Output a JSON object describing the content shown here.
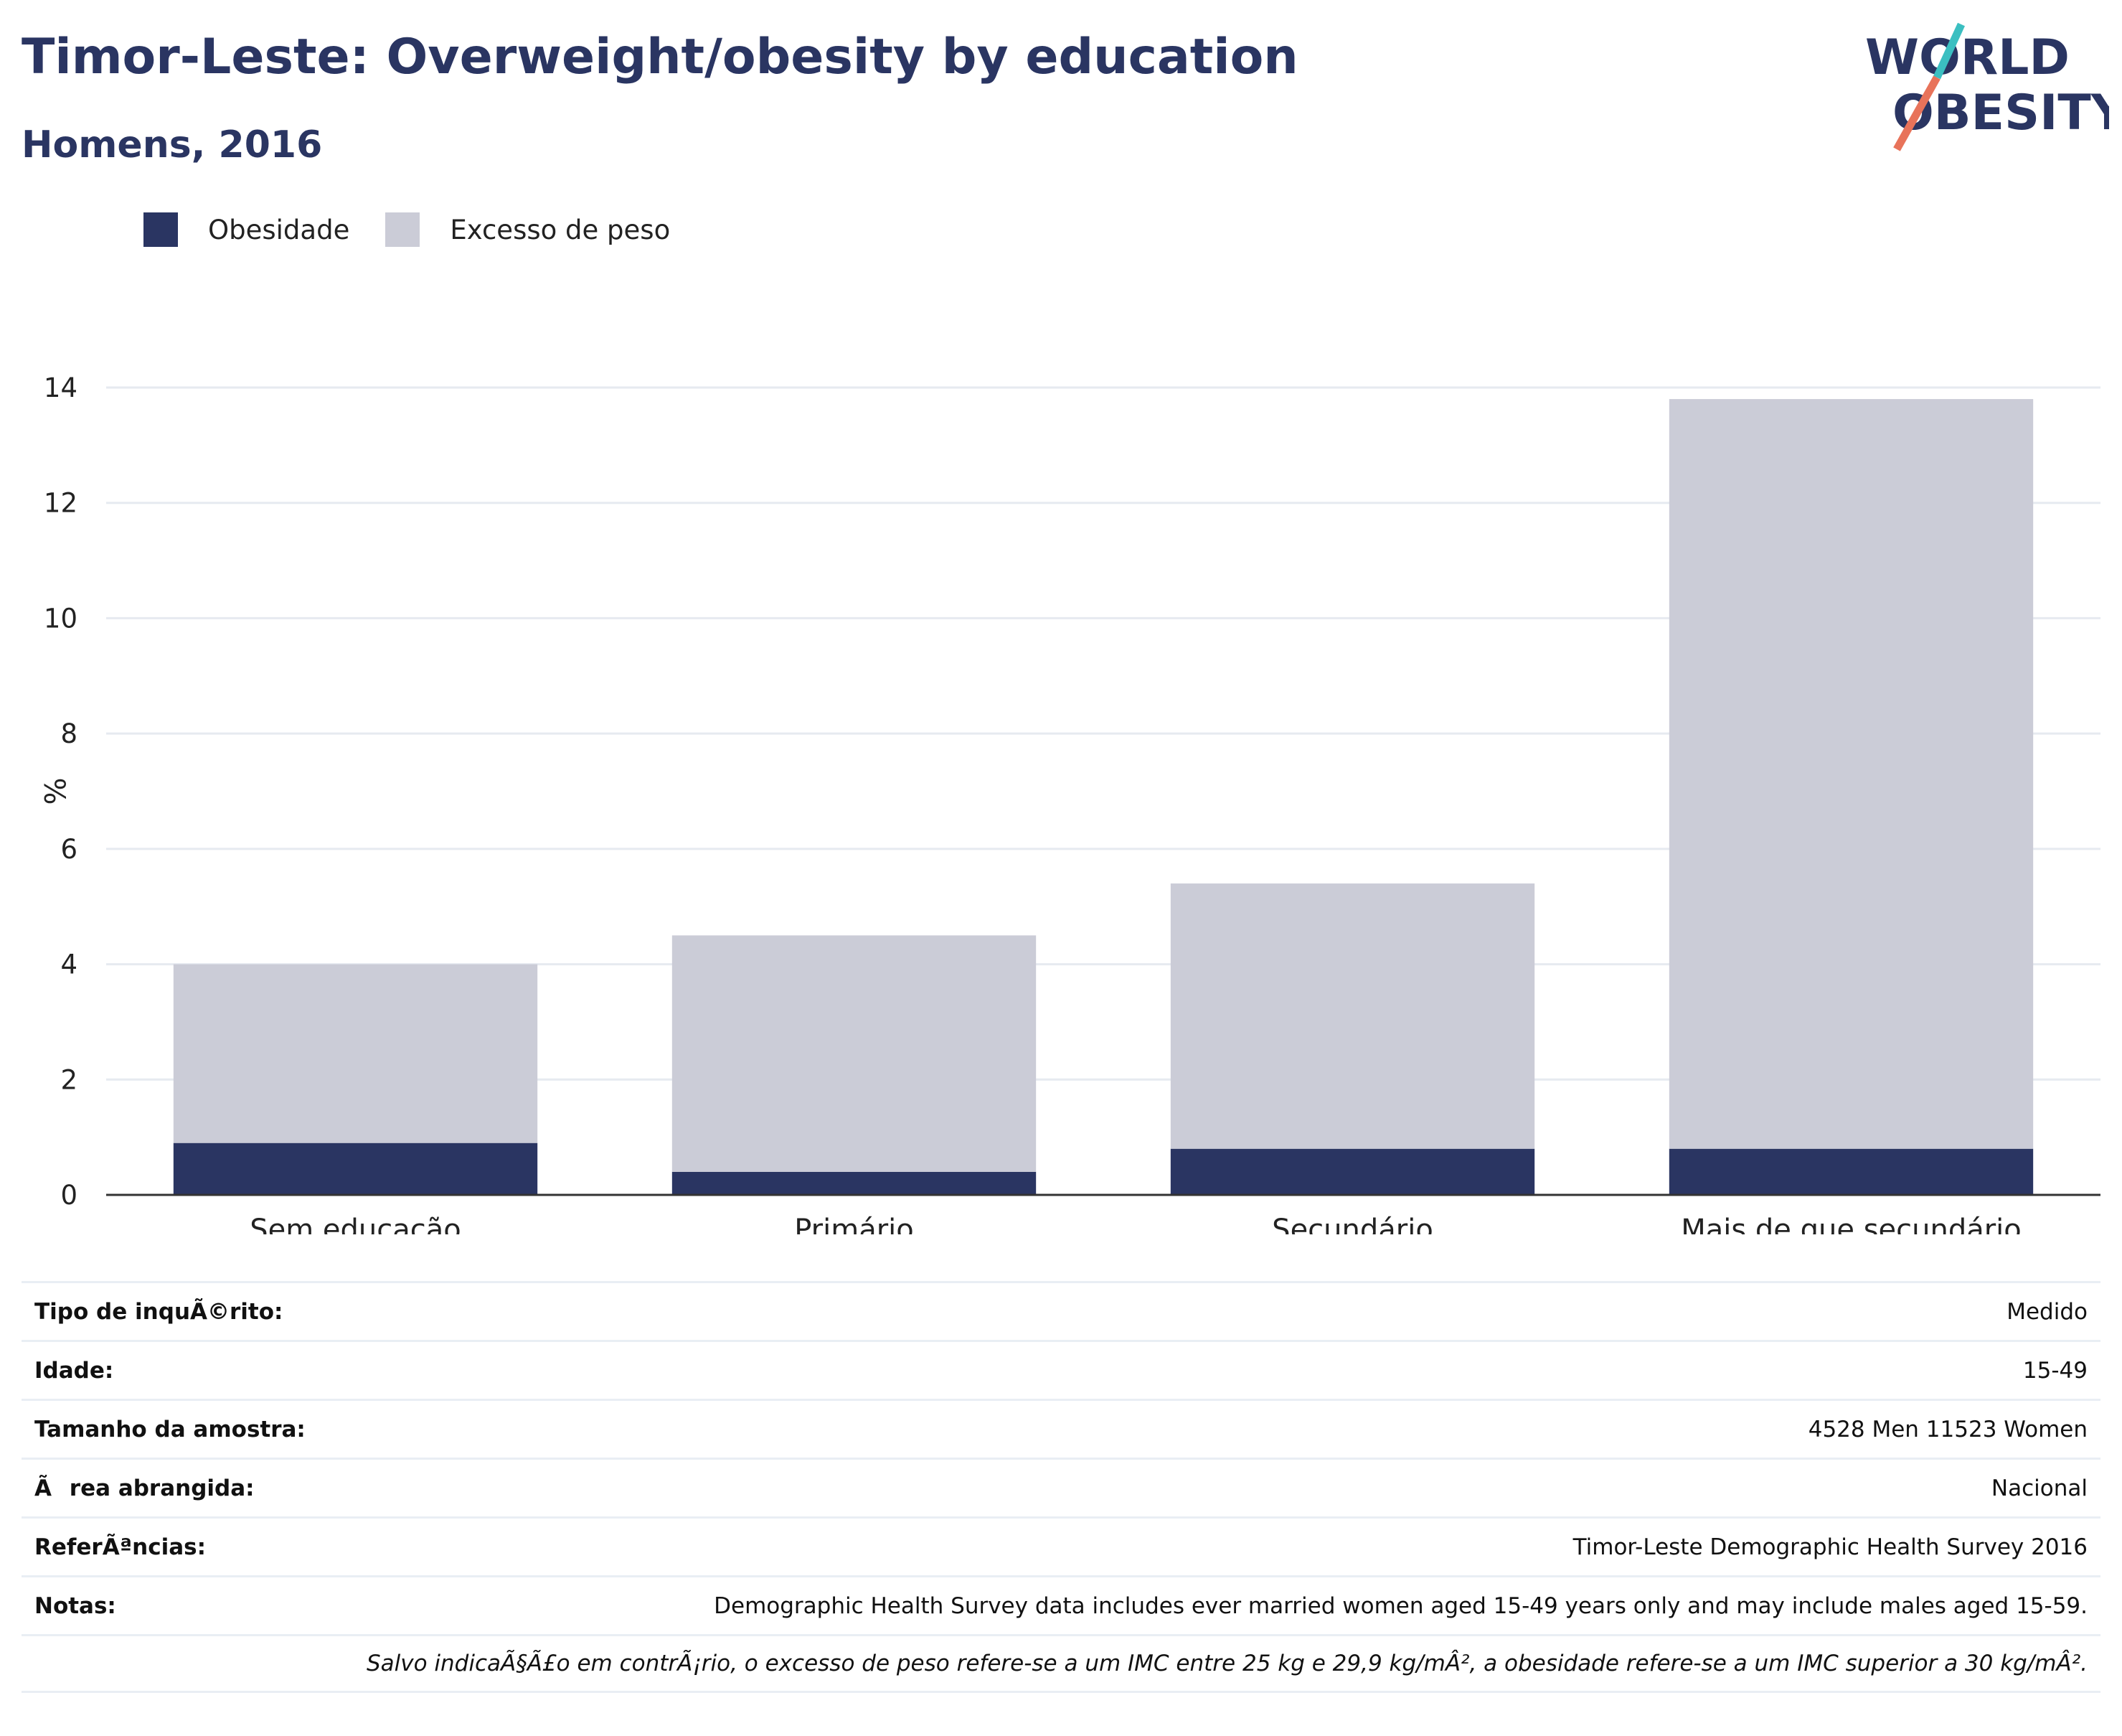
{
  "header": {
    "title": "Timor-Leste: Overweight/obesity by education",
    "subtitle": "Homens, 2016"
  },
  "logo": {
    "line1": "WORLD",
    "line2": "OBESITY",
    "colors": {
      "text": "#2a3562",
      "slash_top": "#3bbfc1",
      "slash_bottom": "#e8735a"
    }
  },
  "legend": {
    "items": [
      {
        "label": "Obesidade",
        "color": "#2a3562"
      },
      {
        "label": "Excesso de peso",
        "color": "#cbccd7"
      }
    ]
  },
  "chart_data": {
    "type": "bar",
    "stacked": true,
    "categories": [
      "Sem educação",
      "Primário",
      "Secundário",
      "Mais de que secundário"
    ],
    "series": [
      {
        "name": "Obesidade",
        "values": [
          0.9,
          0.4,
          0.8,
          0.8
        ],
        "color": "#2a3562"
      },
      {
        "name": "Excesso de peso",
        "values": [
          3.1,
          4.1,
          4.6,
          13.0
        ],
        "color": "#cbccd7"
      }
    ],
    "ylabel": "%",
    "ylim": [
      0,
      14
    ],
    "yticks": [
      0,
      2,
      4,
      6,
      8,
      10,
      12,
      14
    ],
    "grid": true,
    "legend_position": "top-left"
  },
  "info": {
    "rows": [
      {
        "label": "Tipo de inquÃ©rito:",
        "value": "Medido"
      },
      {
        "label": "Idade:",
        "value": "15-49"
      },
      {
        "label": "Tamanho da amostra:",
        "value": "4528 Men 11523 Women"
      },
      {
        "label": "Ãrea abrangida:",
        "value": "Nacional"
      },
      {
        "label": "ReferÃªncias:",
        "value": "Timor-Leste Demographic Health Survey 2016"
      },
      {
        "label": "Notas:",
        "value": "Demographic Health Survey data includes ever married women aged 15-49 years only and may include males aged 15-59."
      }
    ],
    "footnote": "Salvo indicaÃ§Ã£o em contrÃ¡rio, o excesso de peso refere-se a um IMC entre 25 kg e 29,9 kg/mÂ², a obesidade refere-se a um IMC superior a 30 kg/mÂ²."
  }
}
